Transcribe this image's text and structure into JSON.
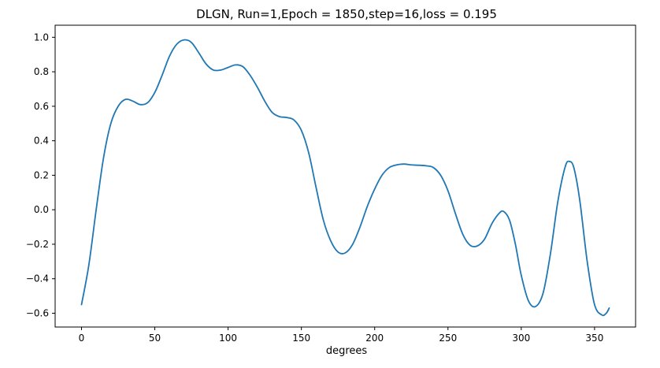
{
  "chart_data": {
    "type": "line",
    "title": "DLGN, Run=1,Epoch = 1850,step=16,loss = 0.195",
    "xlabel": "degrees",
    "ylabel": "",
    "xlim": [
      -18,
      378
    ],
    "ylim": [
      -0.68,
      1.07
    ],
    "xticks": [
      0,
      50,
      100,
      150,
      200,
      250,
      300,
      350
    ],
    "yticks": [
      -0.6,
      -0.4,
      -0.2,
      0.0,
      0.2,
      0.4,
      0.6,
      0.8,
      1.0
    ],
    "xtick_labels": [
      "0",
      "50",
      "100",
      "150",
      "200",
      "250",
      "300",
      "350"
    ],
    "ytick_labels": [
      "−0.6",
      "−0.4",
      "−0.2",
      "0.0",
      "0.2",
      "0.4",
      "0.6",
      "0.8",
      "1.0"
    ],
    "grid": false,
    "legend": "none",
    "series": [
      {
        "color": "#1f77b4",
        "x": [
          0,
          5,
          10,
          15,
          20,
          25,
          30,
          35,
          40,
          45,
          50,
          55,
          60,
          65,
          70,
          75,
          80,
          85,
          90,
          95,
          100,
          105,
          110,
          115,
          120,
          125,
          130,
          135,
          140,
          145,
          150,
          155,
          160,
          165,
          170,
          175,
          180,
          185,
          190,
          195,
          200,
          205,
          210,
          215,
          220,
          225,
          230,
          235,
          240,
          245,
          250,
          255,
          260,
          265,
          270,
          275,
          280,
          285,
          288,
          292,
          296,
          300,
          305,
          310,
          315,
          320,
          325,
          330,
          333,
          336,
          340,
          345,
          350,
          355,
          358,
          360
        ],
        "y": [
          -0.55,
          -0.32,
          0.0,
          0.3,
          0.5,
          0.6,
          0.64,
          0.63,
          0.61,
          0.62,
          0.68,
          0.78,
          0.89,
          0.96,
          0.985,
          0.97,
          0.91,
          0.845,
          0.81,
          0.81,
          0.825,
          0.84,
          0.83,
          0.78,
          0.71,
          0.63,
          0.565,
          0.54,
          0.535,
          0.52,
          0.46,
          0.33,
          0.13,
          -0.06,
          -0.18,
          -0.245,
          -0.25,
          -0.2,
          -0.1,
          0.02,
          0.12,
          0.2,
          0.245,
          0.26,
          0.265,
          0.26,
          0.258,
          0.255,
          0.245,
          0.2,
          0.11,
          -0.02,
          -0.14,
          -0.205,
          -0.21,
          -0.17,
          -0.08,
          -0.02,
          -0.01,
          -0.06,
          -0.2,
          -0.38,
          -0.53,
          -0.56,
          -0.48,
          -0.25,
          0.05,
          0.25,
          0.28,
          0.24,
          0.05,
          -0.3,
          -0.55,
          -0.61,
          -0.6,
          -0.57
        ]
      }
    ]
  }
}
